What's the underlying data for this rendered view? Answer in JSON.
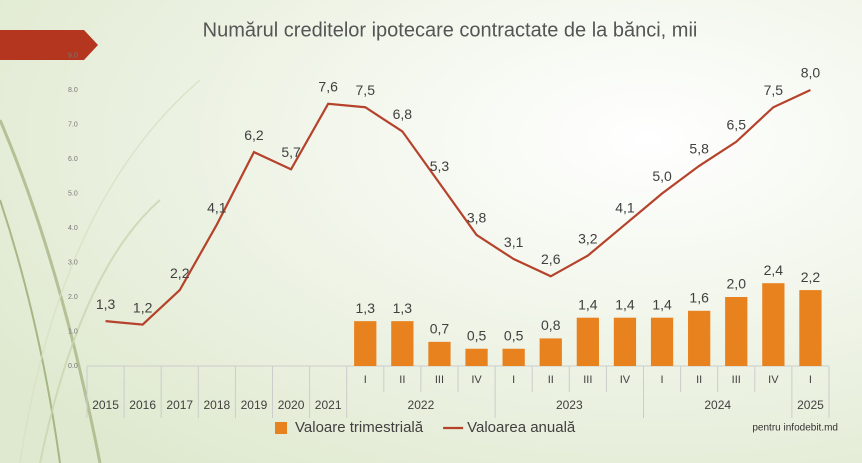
{
  "chart_data": {
    "type": "bar-line",
    "title": "Numărul creditelor ipotecare contractate de la bănci, mii",
    "note": "pentru infodebit.md",
    "categories": [
      null,
      null,
      null,
      null,
      null,
      null,
      null,
      "I",
      "II",
      "III",
      "IV",
      "I",
      "II",
      "III",
      "IV",
      "I",
      "II",
      "III",
      "IV",
      "I"
    ],
    "groups": [
      {
        "label": "2015",
        "span": 1
      },
      {
        "label": "2016",
        "span": 1
      },
      {
        "label": "2017",
        "span": 1
      },
      {
        "label": "2018",
        "span": 1
      },
      {
        "label": "2019",
        "span": 1
      },
      {
        "label": "2020",
        "span": 1
      },
      {
        "label": "2021",
        "span": 1
      },
      {
        "label": "2022",
        "span": 4
      },
      {
        "label": "2023",
        "span": 4
      },
      {
        "label": "2024",
        "span": 4
      },
      {
        "label": "2025",
        "span": 1
      }
    ],
    "series": [
      {
        "name": "Valoare trimestrială",
        "type": "bar",
        "color": "#e8821e",
        "values": [
          null,
          null,
          null,
          null,
          null,
          null,
          null,
          1.3,
          1.3,
          0.7,
          0.5,
          0.5,
          0.8,
          1.4,
          1.4,
          1.4,
          1.6,
          2.0,
          2.4,
          2.2
        ],
        "value_labels": [
          null,
          null,
          null,
          null,
          null,
          null,
          null,
          "1,3",
          "1,3",
          "0,7",
          "0,5",
          "0,5",
          "0,8",
          "1,4",
          "1,4",
          "1,4",
          "1,6",
          "2,0",
          "2,4",
          "2,2"
        ]
      },
      {
        "name": "Valoarea anuală",
        "type": "line",
        "color": "#b5422a",
        "values": [
          1.3,
          1.2,
          2.2,
          4.1,
          6.2,
          5.7,
          7.6,
          7.5,
          6.8,
          5.3,
          3.8,
          3.1,
          2.6,
          3.2,
          4.1,
          5.0,
          5.8,
          6.5,
          7.5,
          8.0
        ],
        "value_labels": [
          "1,3",
          "1,2",
          "2,2",
          "4,1",
          "6,2",
          "5,7",
          "7,6",
          "7,5",
          "6,8",
          "5,3",
          "3,8",
          "3,1",
          "2,6",
          "3,2",
          "4,1",
          "5,0",
          "5,8",
          "6,5",
          "7,5",
          "8,0"
        ]
      }
    ],
    "ylim": [
      0,
      9
    ],
    "yticks": [
      {
        "value": 0,
        "label": "0.0"
      },
      {
        "value": 1,
        "label": "1.0"
      },
      {
        "value": 2,
        "label": "2.0"
      },
      {
        "value": 3,
        "label": "3.0"
      },
      {
        "value": 4,
        "label": "4.0"
      },
      {
        "value": 5,
        "label": "5.0"
      },
      {
        "value": 6,
        "label": "6.0"
      },
      {
        "value": 7,
        "label": "7.0"
      },
      {
        "value": 8,
        "label": "8.0"
      },
      {
        "value": 9,
        "label": "9.0"
      }
    ],
    "grid": false,
    "legend": "bottom"
  }
}
